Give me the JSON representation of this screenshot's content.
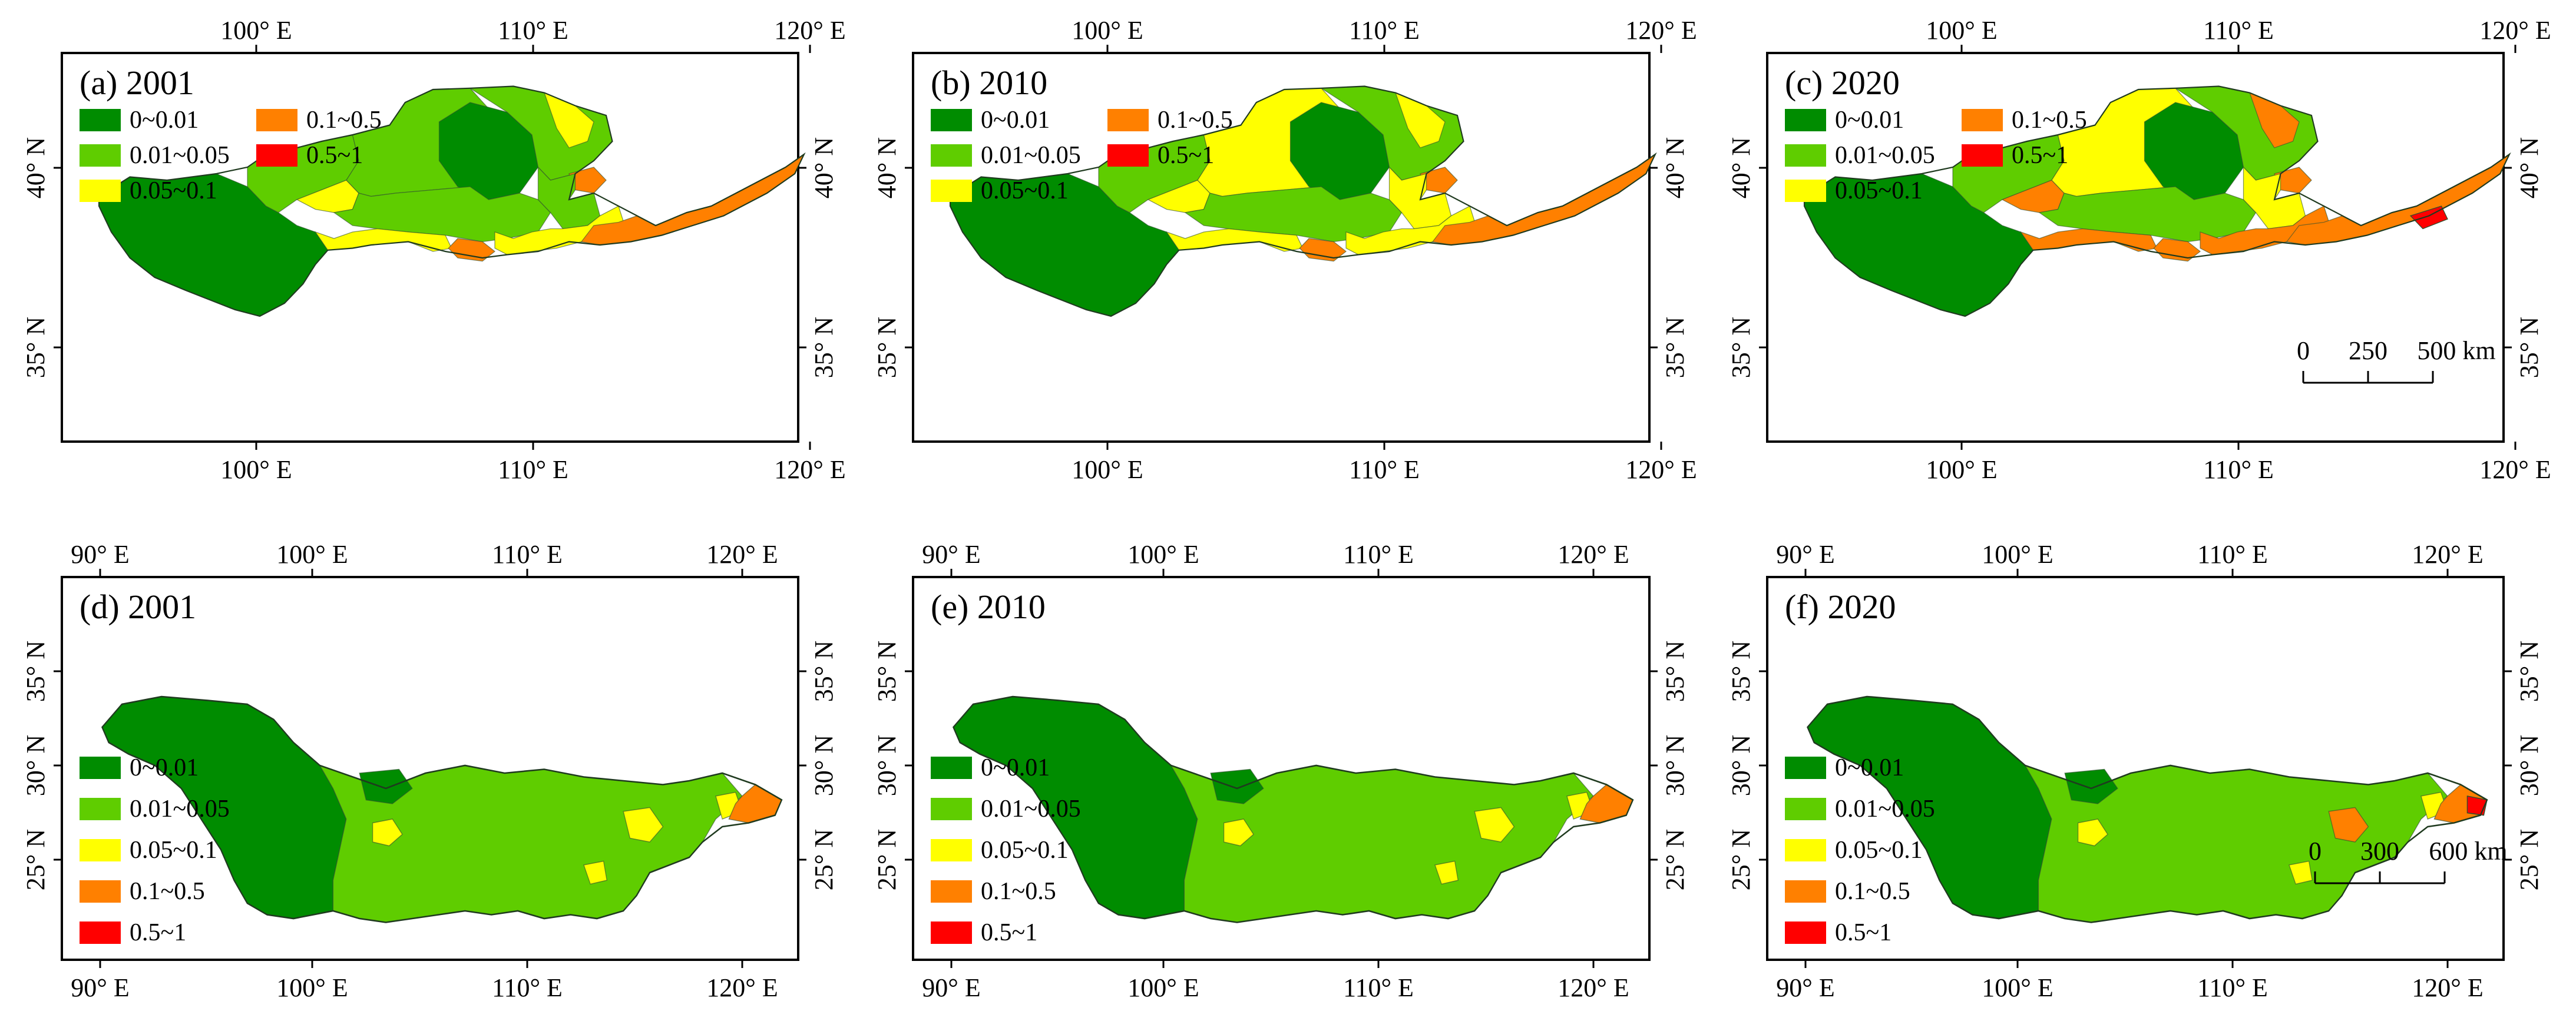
{
  "colors": {
    "class_0": "#008c00",
    "class_1": "#5fcd00",
    "class_2": "#ffff00",
    "class_3": "#ff8000",
    "class_4": "#ff0000",
    "frame": "#000000",
    "boundary": "#2f4f2f"
  },
  "legend": {
    "items": [
      "0~0.01",
      "0.01~0.05",
      "0.05~0.1",
      "0.1~0.5",
      "0.5~1"
    ]
  },
  "yellow_river": {
    "x_ticks": [
      "100° E",
      "110° E",
      "120° E"
    ],
    "y_ticks": [
      "40° N",
      "35° N"
    ],
    "scale_bar": {
      "labels": [
        "0",
        "250",
        "500 km"
      ]
    },
    "panels": [
      {
        "label": "(a) 2001"
      },
      {
        "label": "(b) 2010"
      },
      {
        "label": "(c) 2020"
      }
    ]
  },
  "yangtze_river": {
    "x_ticks": [
      "90° E",
      "100° E",
      "110° E",
      "120° E"
    ],
    "y_ticks": [
      "35° N",
      "30° N",
      "25° N"
    ],
    "scale_bar": {
      "labels": [
        "0",
        "300",
        "600 km"
      ]
    },
    "panels": [
      {
        "label": "(d) 2001"
      },
      {
        "label": "(e) 2010"
      },
      {
        "label": "(f) 2020"
      }
    ]
  }
}
